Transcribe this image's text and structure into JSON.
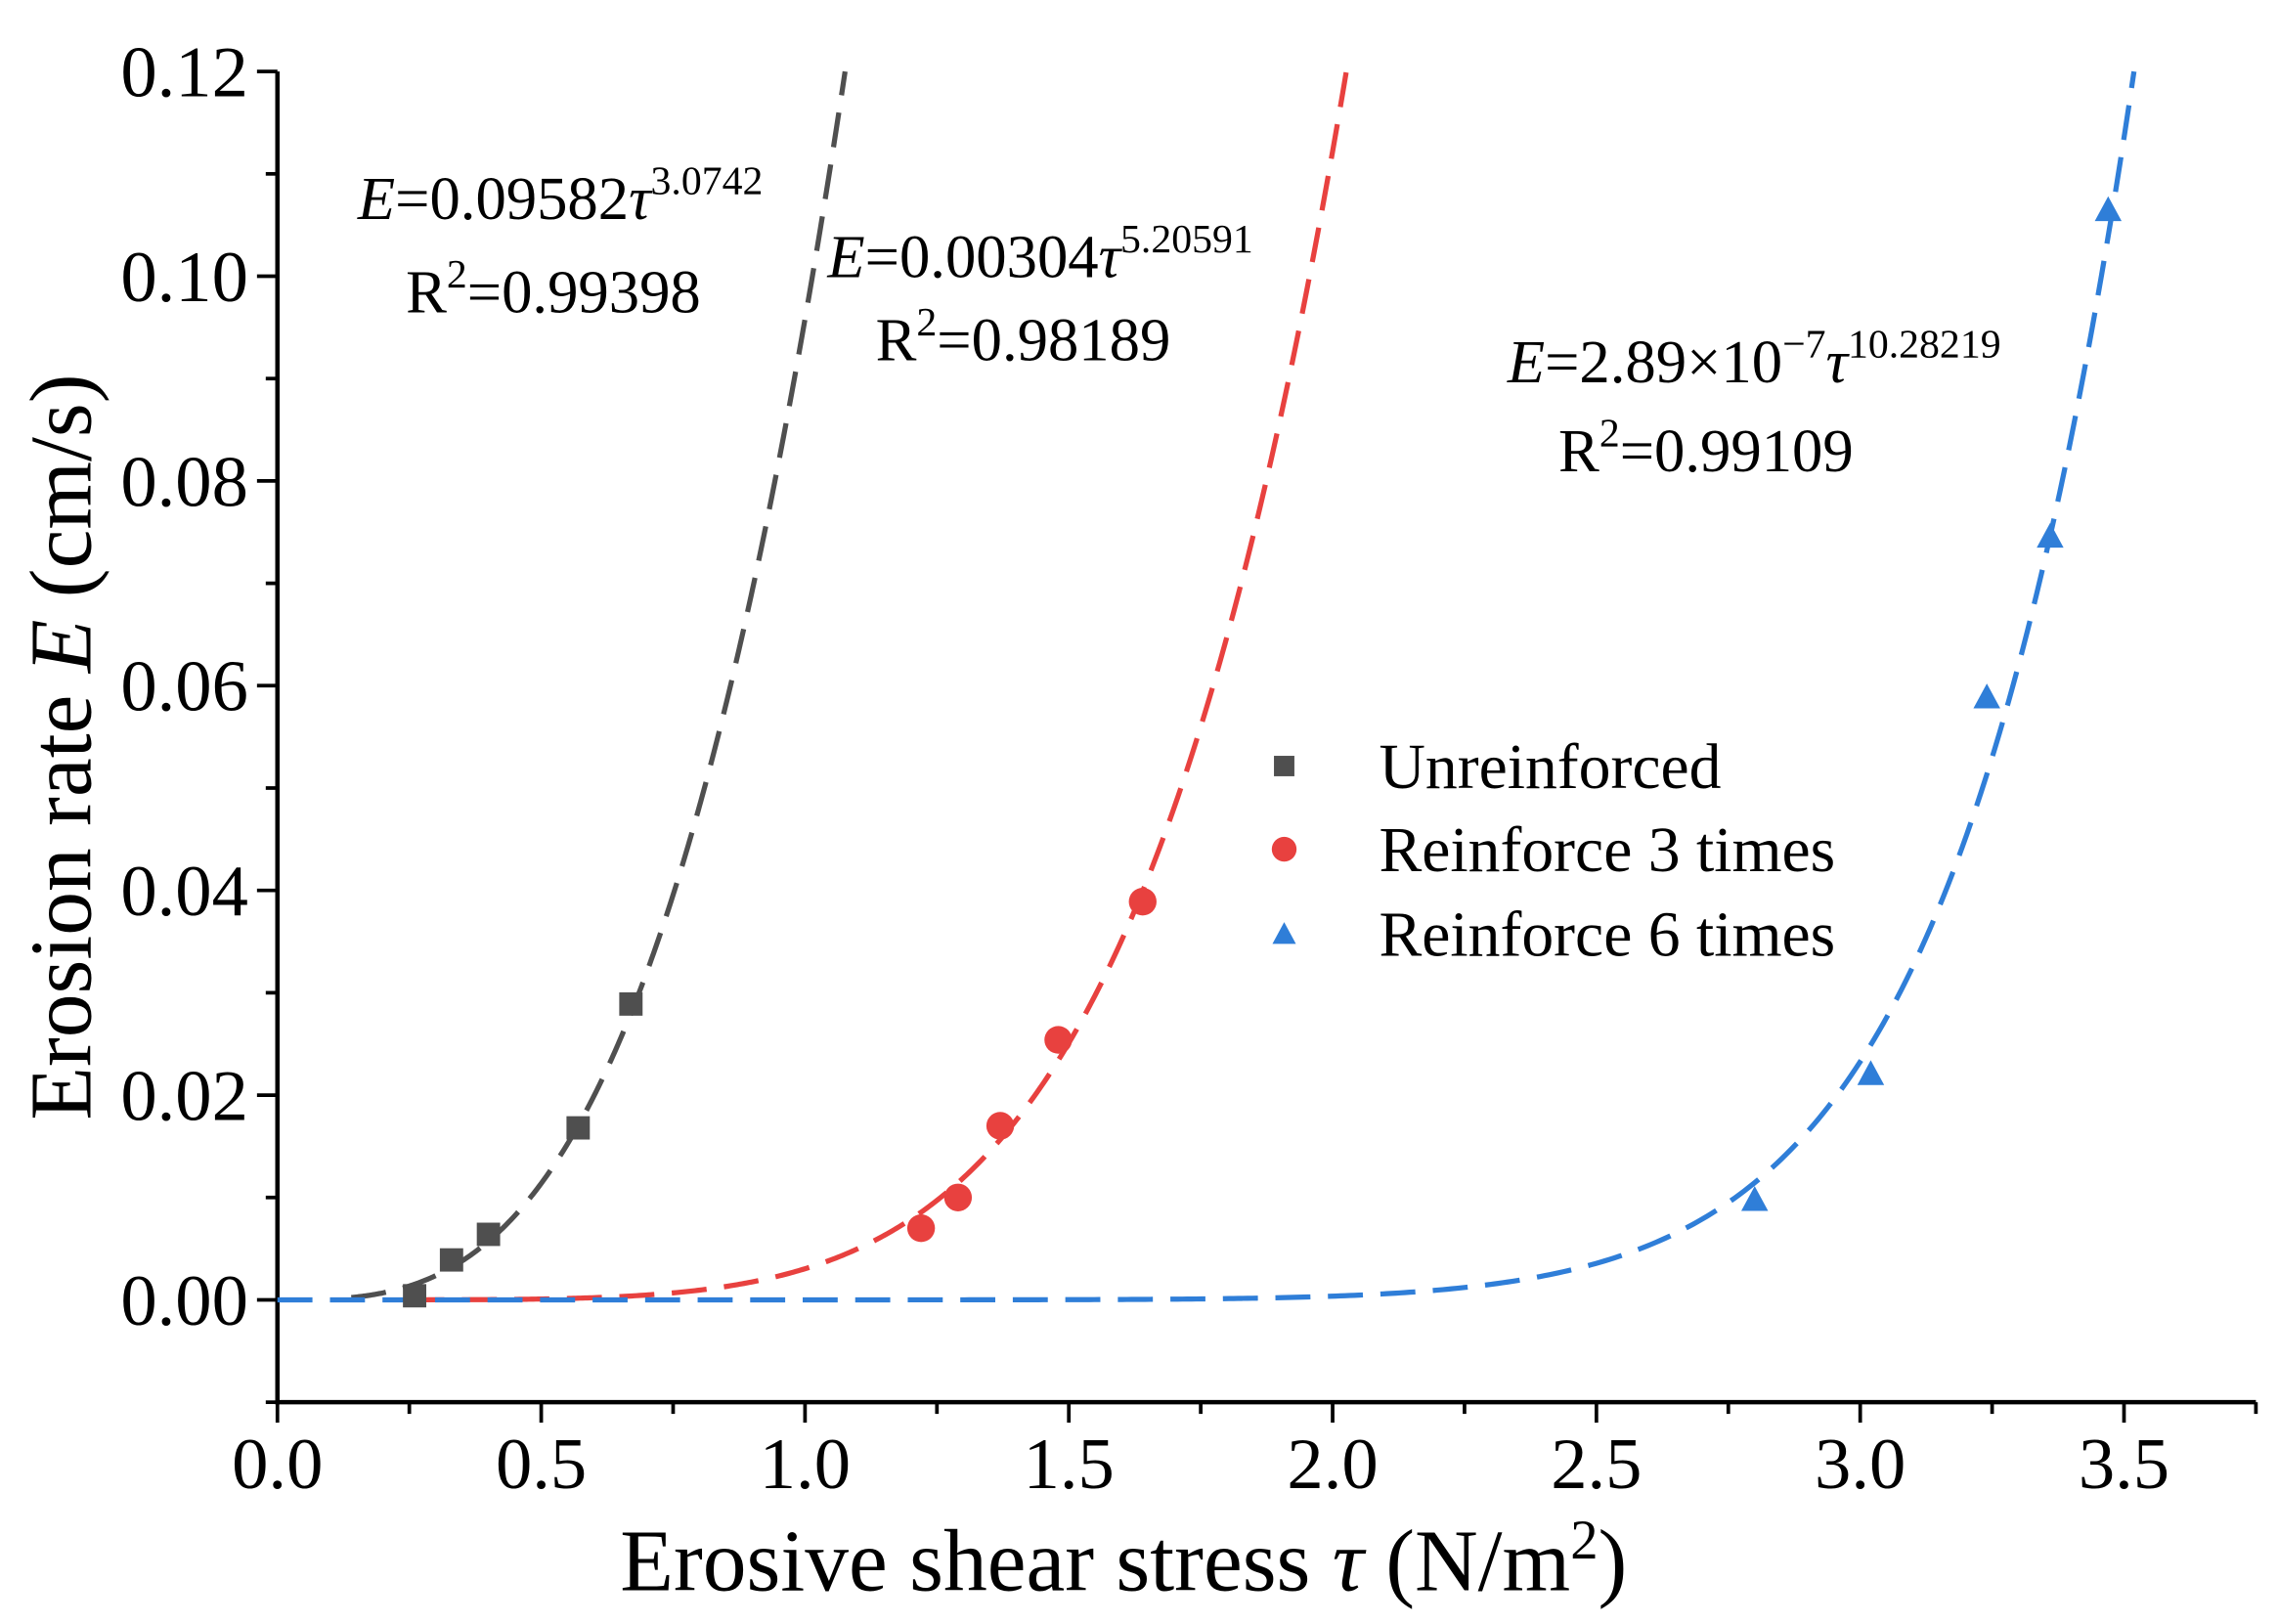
{
  "chart_data": {
    "type": "scatter",
    "xlabel": [
      {
        "text": "Erosive shear stress "
      },
      {
        "italic": "τ"
      },
      {
        "text": " (N/m"
      },
      {
        "sup": "2"
      },
      {
        "text": ")"
      }
    ],
    "ylabel": [
      {
        "text": "Erosion rate "
      },
      {
        "italic": "E"
      },
      {
        "text": " (cm/s)"
      }
    ],
    "xlim": [
      0,
      3.75
    ],
    "ylim": [
      -0.01,
      0.12
    ],
    "xticks": [
      0,
      0.5,
      1.0,
      1.5,
      2.0,
      2.5,
      3.0,
      3.5
    ],
    "xtick_labels": [
      "0.0",
      "0.5",
      "1.0",
      "1.5",
      "2.0",
      "2.5",
      "3.0",
      "3.5"
    ],
    "x_minor_step": 0.25,
    "yticks": [
      0,
      0.02,
      0.04,
      0.06,
      0.08,
      0.1,
      0.12
    ],
    "ytick_labels": [
      "0.00",
      "0.02",
      "0.04",
      "0.06",
      "0.08",
      "0.10",
      "0.12"
    ],
    "y_minor_step": 0.01,
    "grid": false,
    "legend_position": "center-right",
    "series": [
      {
        "name": "Unreinforced",
        "marker": "square",
        "color": "#4f4f4f",
        "x": [
          0.26,
          0.33,
          0.4,
          0.57,
          0.67
        ],
        "y": [
          0.0004,
          0.0039,
          0.0064,
          0.0168,
          0.0289
        ],
        "fit": {
          "a": 0.09582,
          "b": 3.0742,
          "r2": 0.99398,
          "x_start": 0.14
        }
      },
      {
        "name": "Reinforce 3 times",
        "marker": "circle",
        "color": "#e8413f",
        "x": [
          1.22,
          1.29,
          1.37,
          1.48,
          1.64
        ],
        "y": [
          0.007,
          0.01,
          0.017,
          0.0254,
          0.0389
        ],
        "fit": {
          "a": 0.00304,
          "b": 5.20591,
          "r2": 0.98189,
          "x_start": 0.25
        }
      },
      {
        "name": "Reinforce 6 times",
        "marker": "triangle",
        "color": "#2f7ed8",
        "x": [
          2.8,
          3.02,
          3.24,
          3.36,
          3.47
        ],
        "y": [
          0.0098,
          0.0221,
          0.0589,
          0.0746,
          0.1065
        ],
        "fit": {
          "a": 2.89e-07,
          "b": 10.28219,
          "r2": 0.99109,
          "x_start": 0.0
        }
      }
    ]
  },
  "annotations": [
    {
      "equation": [
        {
          "italic": "E"
        },
        {
          "text": "=0.09582"
        },
        {
          "italic": "τ"
        },
        {
          "sup": "3.0742"
        }
      ],
      "r_squared": [
        {
          "text": "R"
        },
        {
          "sup": "2"
        },
        {
          "text": "=0.99398"
        }
      ]
    },
    {
      "equation": [
        {
          "italic": "E"
        },
        {
          "text": "=0.00304"
        },
        {
          "italic": "τ"
        },
        {
          "sup": "5.20591"
        }
      ],
      "r_squared": [
        {
          "text": "R"
        },
        {
          "sup": "2"
        },
        {
          "text": "=0.98189"
        }
      ]
    },
    {
      "equation": [
        {
          "italic": "E"
        },
        {
          "text": "=2.89×10"
        },
        {
          "sup": "−7"
        },
        {
          "italic": "τ"
        },
        {
          "sup": "10.28219"
        }
      ],
      "r_squared": [
        {
          "text": "R"
        },
        {
          "sup": "2"
        },
        {
          "text": "=0.99109"
        }
      ]
    }
  ]
}
